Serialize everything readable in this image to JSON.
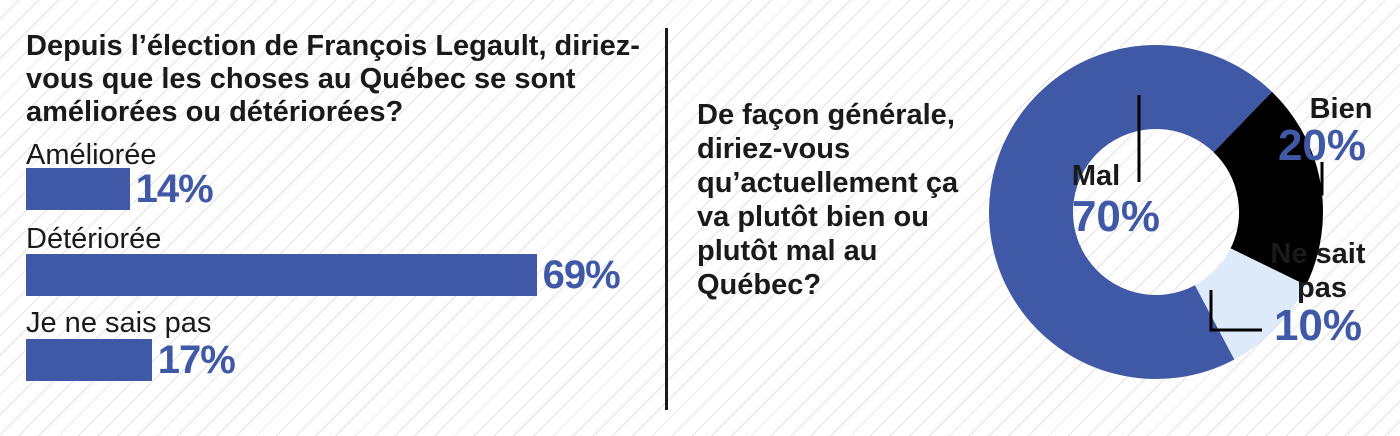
{
  "colors": {
    "accent": "#4059a6",
    "black": "#000000",
    "light": "#ddeafa",
    "text": "#1a1a1a"
  },
  "question1": "Depuis l’élection de François Legault, diriez-vous que les choses au Québec se sont améliorées ou détériorées?",
  "question2": "De façon générale, diriez-vous qu’actuellement ça va plutôt bien ou plutôt mal au Québec?",
  "chart_data": [
    {
      "type": "bar",
      "orientation": "horizontal",
      "title": "Depuis l’élection de François Legault, diriez-vous que les choses au Québec se sont améliorées ou détériorées?",
      "categories": [
        "Améliorée",
        "Détériorée",
        "Je ne sais pas"
      ],
      "values": [
        14,
        69,
        17
      ],
      "value_labels": [
        "14%",
        "69%",
        "17%"
      ],
      "unit": "%"
    },
    {
      "type": "pie",
      "donut": true,
      "title": "De façon générale, diriez-vous qu’actuellement ça va plutôt bien ou plutôt mal au Québec?",
      "categories": [
        "Mal",
        "Bien",
        "Ne sait pas"
      ],
      "values": [
        70,
        20,
        10
      ],
      "value_labels": [
        "70%",
        "20%",
        "10%"
      ],
      "slice_colors": [
        "#4059a6",
        "#000000",
        "#ddeafa"
      ],
      "unit": "%"
    }
  ]
}
